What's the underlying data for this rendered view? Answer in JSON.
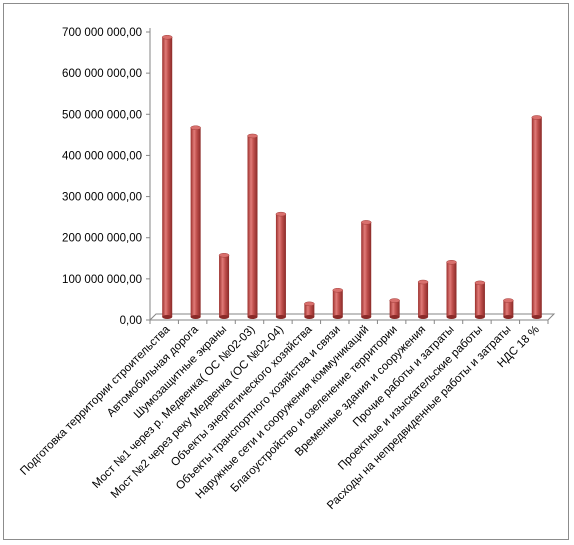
{
  "chart_data": {
    "type": "bar",
    "title": "",
    "xlabel": "",
    "ylabel": "",
    "ylim": [
      0,
      700000000
    ],
    "yticks": [
      0,
      100000000,
      200000000,
      300000000,
      400000000,
      500000000,
      600000000,
      700000000
    ],
    "ytick_labels": [
      "0,00",
      "100 000 000,00",
      "200 000 000,00",
      "300 000 000,00",
      "400 000 000,00",
      "500 000 000,00",
      "600 000 000,00",
      "700 000 000,00"
    ],
    "grid": false,
    "legend": "none",
    "bar_color": "#c0504d",
    "categories": [
      "Подготовка территории строительства",
      "Автомобильная дорога",
      "Шумозащитные экраны",
      "Мост №1 через р. Медвенка( ОС №02-03)",
      "Мост №2 через реку Медвенка  (ОС №02-04)",
      "Объекты энергетического  хозяйства",
      "Объекты транспортного хозяйства и связи",
      "Наружные сети и сооружения коммуникаций",
      "Благоустройство и озеленение территории",
      "Временные здания и сооружения",
      "Прочие работы и затраты",
      "Проектные и изыскательские работы",
      "Расходы на непредвиденные  работы и затраты",
      "НДС 18 %"
    ],
    "values": [
      680000000,
      460000000,
      150000000,
      440000000,
      250000000,
      32000000,
      65000000,
      230000000,
      40000000,
      85000000,
      133000000,
      83000000,
      40000000,
      485000000
    ]
  }
}
